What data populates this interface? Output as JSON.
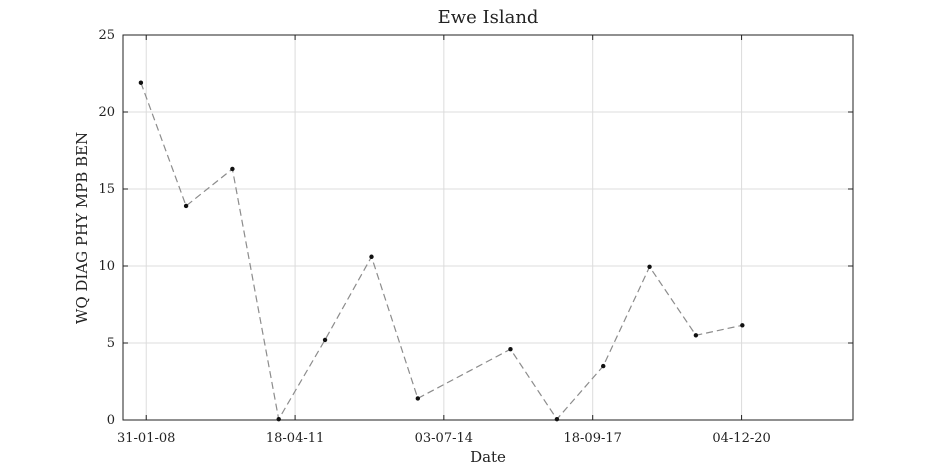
{
  "chart_data": {
    "type": "line",
    "title": "Ewe Island",
    "xlabel": "Date",
    "ylabel": "WQ DIAG PHY MPB BEN",
    "ylim": [
      0,
      25
    ],
    "xlim": [
      "2007-08-01",
      "2023-05-01"
    ],
    "yticks": [
      0,
      5,
      10,
      15,
      20,
      25
    ],
    "xticks": [
      {
        "date": "2008-01-31",
        "label": "31-01-08"
      },
      {
        "date": "2011-04-18",
        "label": "18-04-11"
      },
      {
        "date": "2014-07-03",
        "label": "03-07-14"
      },
      {
        "date": "2017-09-18",
        "label": "18-09-17"
      },
      {
        "date": "2020-12-04",
        "label": "04-12-20"
      }
    ],
    "grid": true,
    "line_style": "dashed",
    "colors": {
      "line": "#8c8c8c",
      "marker": "#111111",
      "grid": "#dcdcdc",
      "axes": "#222222"
    },
    "series": [
      {
        "points": [
          {
            "x": "2007-12-20",
            "y": 21.9
          },
          {
            "x": "2008-12-10",
            "y": 13.9
          },
          {
            "x": "2009-12-10",
            "y": 16.3
          },
          {
            "x": "2010-12-10",
            "y": 0.05
          },
          {
            "x": "2011-12-10",
            "y": 5.2
          },
          {
            "x": "2012-12-10",
            "y": 10.6
          },
          {
            "x": "2013-12-10",
            "y": 1.4
          },
          {
            "x": "2015-12-10",
            "y": 4.6
          },
          {
            "x": "2016-12-10",
            "y": 0.05
          },
          {
            "x": "2017-12-10",
            "y": 3.5
          },
          {
            "x": "2018-12-10",
            "y": 9.95
          },
          {
            "x": "2019-12-10",
            "y": 5.5
          },
          {
            "x": "2020-12-10",
            "y": 6.15
          }
        ]
      }
    ]
  }
}
